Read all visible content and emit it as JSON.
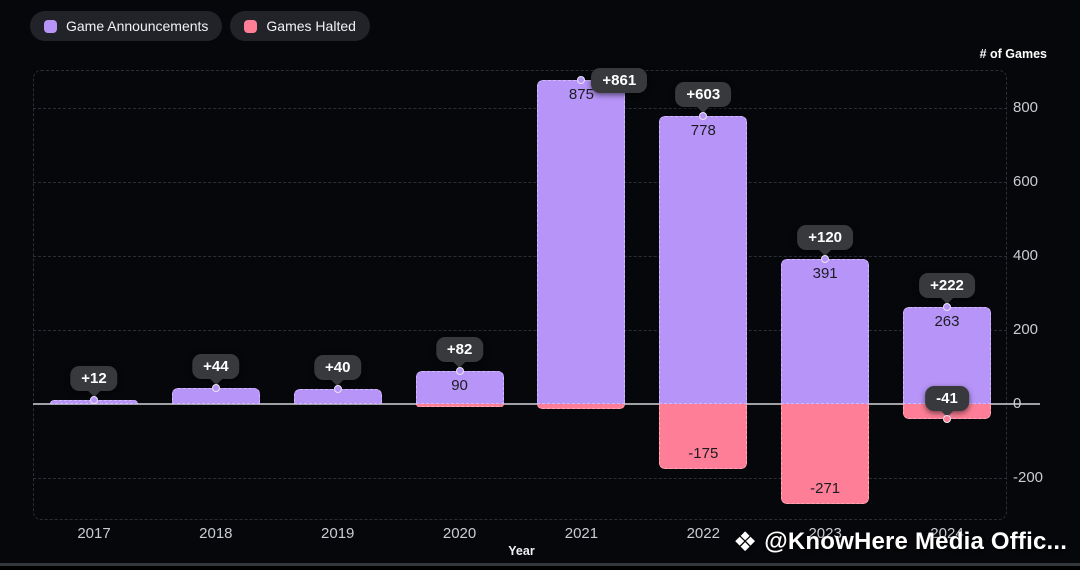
{
  "legend": {
    "items": [
      {
        "label": "Game Announcements",
        "color": "#b795f8"
      },
      {
        "label": "Games Halted",
        "color": "#fd7e96"
      }
    ]
  },
  "axis": {
    "y_title": "# of Games",
    "x_title": "Year",
    "y_ticks": [
      800,
      600,
      400,
      200,
      0,
      -200
    ]
  },
  "chart_data": {
    "type": "bar",
    "stacked": true,
    "title": "",
    "xlabel": "Year",
    "ylabel": "# of Games",
    "ylim": [
      -300,
      900
    ],
    "grid": true,
    "legend_position": "top-left",
    "categories": [
      "2017",
      "2018",
      "2019",
      "2020",
      "2021",
      "2022",
      "2023",
      "2024"
    ],
    "series": [
      {
        "name": "Game Announcements",
        "color": "#b795f8",
        "values": [
          12,
          44,
          40,
          90,
          875,
          778,
          391,
          263
        ],
        "bar_labels": [
          null,
          null,
          null,
          "90",
          "875",
          "778",
          "391",
          "263"
        ]
      },
      {
        "name": "Games Halted",
        "color": "#fd7e96",
        "values": [
          0,
          0,
          0,
          -8,
          -14,
          -175,
          -271,
          -41
        ],
        "bar_labels": [
          null,
          null,
          null,
          null,
          null,
          "-175",
          "-271",
          null
        ]
      }
    ],
    "net_tooltips": [
      "+12",
      "+44",
      "+40",
      "+82",
      "+861",
      "+603",
      "+120",
      "+222"
    ],
    "halted_tooltips": [
      null,
      null,
      null,
      null,
      null,
      null,
      null,
      "-41"
    ]
  },
  "watermark": {
    "icon": "❖",
    "text": "@KnowHere Media Offic..."
  }
}
